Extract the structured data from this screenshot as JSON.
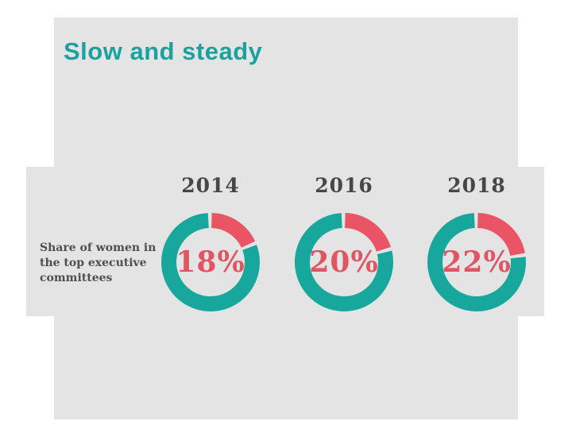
{
  "slide": {
    "title": "Slow and steady"
  },
  "caption": {
    "full_text": "Share of women in the top executive committees",
    "lines": [
      "Share of women in",
      "the top executive",
      "committees"
    ]
  },
  "chart_data": {
    "type": "pie",
    "subtype": "donut-series",
    "title": "Slow and steady",
    "series_label": "Share of women in the top executive committees",
    "categories": [
      "2014",
      "2016",
      "2018"
    ],
    "values": [
      18,
      20,
      22
    ],
    "labels": [
      "18%",
      "20%",
      "22%"
    ],
    "unit": "%",
    "legend_position": "none",
    "layout": "three donuts in a horizontal row, year above, percent inside",
    "colors": {
      "share_arc": "#EA5566",
      "remainder_arc": "#18A79C",
      "percent_text": "#E05563",
      "year_text": "#474747",
      "caption_text": "#4F4F4F",
      "title_text": "#1BA2A0",
      "slide_background": "#E4E4E4",
      "page_background": "#FFFFFF"
    }
  }
}
